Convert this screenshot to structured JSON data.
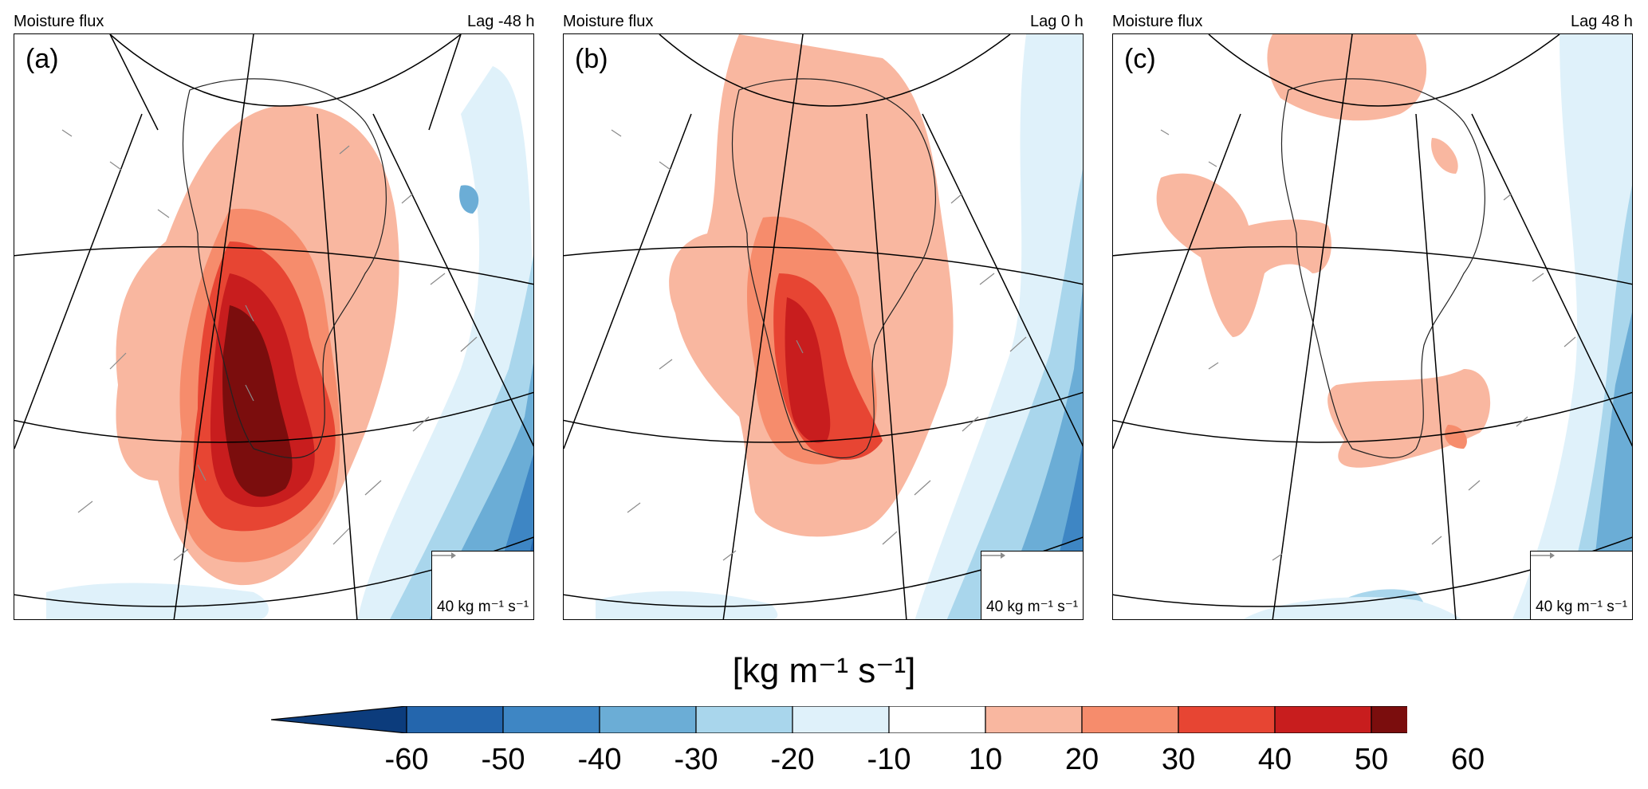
{
  "panels": [
    {
      "id": "a",
      "title": "Moisture flux",
      "lag": "Lag -48 h",
      "letter": "(a)",
      "ref_label": "40 kg m⁻¹ s⁻¹"
    },
    {
      "id": "b",
      "title": "Moisture flux",
      "lag": "Lag 0 h",
      "letter": "(b)",
      "ref_label": "40 kg m⁻¹ s⁻¹"
    },
    {
      "id": "c",
      "title": "Moisture flux",
      "lag": "Lag 48 h",
      "letter": "(c)",
      "ref_label": "40 kg m⁻¹ s⁻¹"
    }
  ],
  "colorbar": {
    "label": "[kg m⁻¹ s⁻¹]",
    "ticks": [
      "-60",
      "-50",
      "-40",
      "-30",
      "-20",
      "-10",
      "10",
      "20",
      "30",
      "40",
      "50",
      "60"
    ],
    "colors": [
      "#0c3c7c",
      "#2466ad",
      "#3e86c4",
      "#6badd6",
      "#a9d6ec",
      "#dff1fa",
      "#ffffff",
      "#f9b7a0",
      "#f68c6c",
      "#e74533",
      "#c81d1e",
      "#7b0d0d",
      "#5c0608"
    ]
  }
}
